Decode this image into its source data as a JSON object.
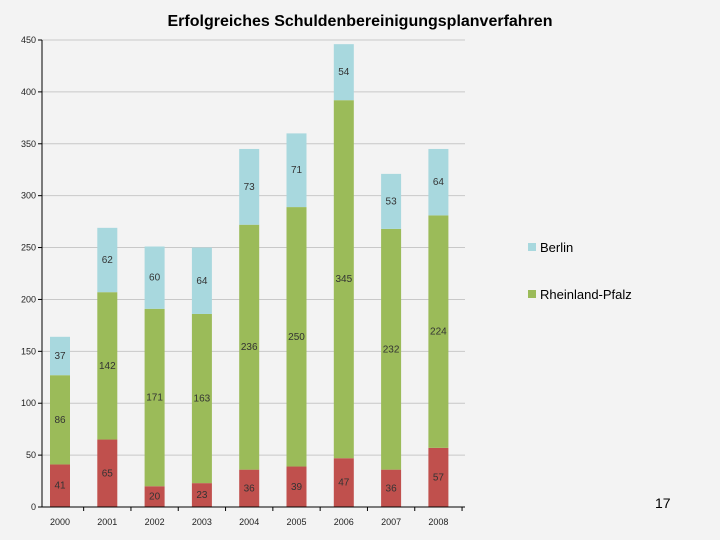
{
  "slide": {
    "page_number": "17"
  },
  "colors": {
    "berlin": "#a8d8de",
    "rheinland_pfalz": "#9bbb59",
    "unlabeled": "#c0504d",
    "grid": "#c8c8c8",
    "axis": "#000000",
    "background": "#f3f3f3"
  },
  "chart_data": {
    "type": "bar",
    "stacked": true,
    "title": "Erfolgreiches Schuldenbereinigungsplanverfahren",
    "xlabel": "",
    "ylabel": "",
    "ylim": [
      0,
      450
    ],
    "yticks": [
      0,
      50,
      100,
      150,
      200,
      250,
      300,
      350,
      400,
      450
    ],
    "grid": true,
    "legend_position": "right",
    "categories": [
      "2000",
      "2001",
      "2002",
      "2003",
      "2004",
      "2005",
      "2006",
      "2007",
      "2008"
    ],
    "series": [
      {
        "name": "",
        "key": "unlabeled",
        "values": [
          41,
          65,
          20,
          23,
          36,
          39,
          47,
          36,
          57
        ]
      },
      {
        "name": "Rheinland-Pfalz",
        "key": "rheinland_pfalz",
        "values": [
          86,
          142,
          171,
          163,
          236,
          250,
          345,
          232,
          224
        ]
      },
      {
        "name": "Berlin",
        "key": "berlin",
        "values": [
          37,
          62,
          60,
          64,
          73,
          71,
          54,
          53,
          64
        ]
      }
    ]
  }
}
